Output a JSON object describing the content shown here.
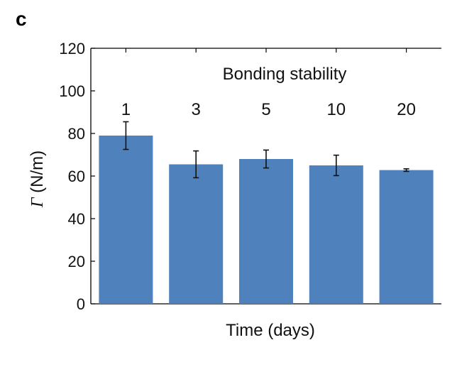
{
  "chart_data": {
    "type": "bar",
    "panel_label": "c",
    "title": "Bonding stability",
    "categories": [
      "1",
      "3",
      "5",
      "10",
      "20"
    ],
    "values": [
      79,
      65.5,
      68,
      65,
      62.8
    ],
    "errors": [
      6.5,
      6.3,
      4.2,
      4.8,
      0.6
    ],
    "xlabel": "Time (days)",
    "ylabel_symbol": "Γ",
    "ylabel_unit": "(N/m)",
    "ylim": [
      0,
      120
    ],
    "yticks": [
      "0",
      "20",
      "40",
      "60",
      "80",
      "100",
      "120"
    ],
    "bar_color": "#4f81bd",
    "grid": false,
    "legend": "none"
  }
}
